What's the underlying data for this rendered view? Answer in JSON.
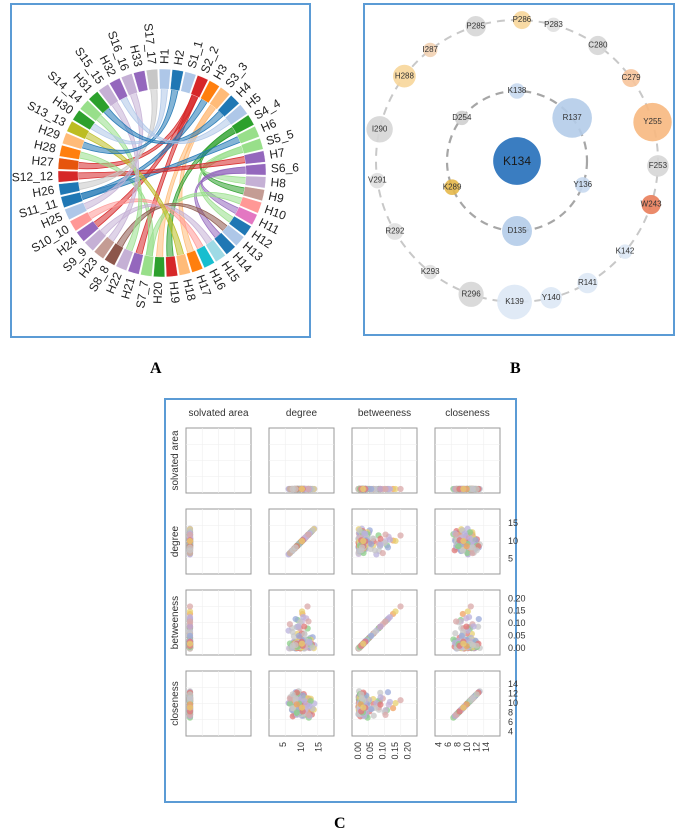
{
  "panel_labels": {
    "a": "A",
    "b": "B",
    "c": "C"
  },
  "chart_data": [
    {
      "type": "chord",
      "title": "",
      "panel": "A",
      "segments": [
        {
          "label": "H1",
          "color": "#aec7e8",
          "kind": "H"
        },
        {
          "label": "H2",
          "color": "#1f77b4",
          "kind": "H"
        },
        {
          "label": "S1_1",
          "color": "#aec7e8",
          "kind": "S"
        },
        {
          "label": "S2_2",
          "color": "#d62728",
          "kind": "S"
        },
        {
          "label": "H3",
          "color": "#ff7f0e",
          "kind": "H"
        },
        {
          "label": "S3_3",
          "color": "#ffbb78",
          "kind": "S"
        },
        {
          "label": "H4",
          "color": "#1f77b4",
          "kind": "H"
        },
        {
          "label": "H5",
          "color": "#aec7e8",
          "kind": "H"
        },
        {
          "label": "S4_4",
          "color": "#2ca02c",
          "kind": "S"
        },
        {
          "label": "H6",
          "color": "#98df8a",
          "kind": "H"
        },
        {
          "label": "S5_5",
          "color": "#98df8a",
          "kind": "S"
        },
        {
          "label": "H7",
          "color": "#9467bd",
          "kind": "H"
        },
        {
          "label": "S6_6",
          "color": "#9467bd",
          "kind": "S"
        },
        {
          "label": "H8",
          "color": "#c5b0d5",
          "kind": "H"
        },
        {
          "label": "H9",
          "color": "#c49c94",
          "kind": "H"
        },
        {
          "label": "H10",
          "color": "#ff9896",
          "kind": "H"
        },
        {
          "label": "H11",
          "color": "#e377c2",
          "kind": "H"
        },
        {
          "label": "H12",
          "color": "#1f77b4",
          "kind": "H"
        },
        {
          "label": "H13",
          "color": "#aec7e8",
          "kind": "H"
        },
        {
          "label": "H14",
          "color": "#1f77b4",
          "kind": "H"
        },
        {
          "label": "H15",
          "color": "#9edae5",
          "kind": "H"
        },
        {
          "label": "H16",
          "color": "#17becf",
          "kind": "H"
        },
        {
          "label": "H17",
          "color": "#ff7f0e",
          "kind": "H"
        },
        {
          "label": "H18",
          "color": "#ffbb78",
          "kind": "H"
        },
        {
          "label": "H19",
          "color": "#d62728",
          "kind": "H"
        },
        {
          "label": "H20",
          "color": "#2ca02c",
          "kind": "H"
        },
        {
          "label": "S7_7",
          "color": "#98df8a",
          "kind": "S"
        },
        {
          "label": "H21",
          "color": "#9467bd",
          "kind": "H"
        },
        {
          "label": "H22",
          "color": "#c5b0d5",
          "kind": "H"
        },
        {
          "label": "S8_8",
          "color": "#8c564b",
          "kind": "S"
        },
        {
          "label": "H23",
          "color": "#c49c94",
          "kind": "H"
        },
        {
          "label": "S9_9",
          "color": "#c5b0d5",
          "kind": "S"
        },
        {
          "label": "H24",
          "color": "#9467bd",
          "kind": "H"
        },
        {
          "label": "S10_10",
          "color": "#ff9896",
          "kind": "S"
        },
        {
          "label": "H25",
          "color": "#aec7e8",
          "kind": "H"
        },
        {
          "label": "S11_11",
          "color": "#1f77b4",
          "kind": "S"
        },
        {
          "label": "H26",
          "color": "#1f77b4",
          "kind": "H"
        },
        {
          "label": "S12_12",
          "color": "#d62728",
          "kind": "S"
        },
        {
          "label": "H27",
          "color": "#e6550d",
          "kind": "H"
        },
        {
          "label": "H28",
          "color": "#ff7f0e",
          "kind": "H"
        },
        {
          "label": "H29",
          "color": "#ffbb78",
          "kind": "H"
        },
        {
          "label": "S13_13",
          "color": "#bcbd22",
          "kind": "S"
        },
        {
          "label": "H30",
          "color": "#2ca02c",
          "kind": "H"
        },
        {
          "label": "S14_14",
          "color": "#98df8a",
          "kind": "S"
        },
        {
          "label": "H31",
          "color": "#2ca02c",
          "kind": "H"
        },
        {
          "label": "S15_15",
          "color": "#c5b0d5",
          "kind": "S"
        },
        {
          "label": "H32",
          "color": "#9467bd",
          "kind": "H"
        },
        {
          "label": "S16_16",
          "color": "#c5b0d5",
          "kind": "S"
        },
        {
          "label": "H33",
          "color": "#9467bd",
          "kind": "H"
        },
        {
          "label": "S17_17",
          "color": "#c7c7c7",
          "kind": "S"
        }
      ],
      "links": [
        [
          "S2_2",
          "H27"
        ],
        [
          "S2_2",
          "H24"
        ],
        [
          "S2_2",
          "H21"
        ],
        [
          "S3_3",
          "H20"
        ],
        [
          "S3_3",
          "H17"
        ],
        [
          "S4_4",
          "H19"
        ],
        [
          "S4_4",
          "H9"
        ],
        [
          "S5_5",
          "H12"
        ],
        [
          "S5_5",
          "H8"
        ],
        [
          "S6_6",
          "H11"
        ],
        [
          "S6_6",
          "H14"
        ],
        [
          "S7_7",
          "H28"
        ],
        [
          "S7_7",
          "H10"
        ],
        [
          "S8_8",
          "H13"
        ],
        [
          "S9_9",
          "H15"
        ],
        [
          "S10_10",
          "H16"
        ],
        [
          "S11_11",
          "H6"
        ],
        [
          "S11_11",
          "H3"
        ],
        [
          "S12_12",
          "H7"
        ],
        [
          "S13_13",
          "H18"
        ],
        [
          "S14_14",
          "H22"
        ],
        [
          "S15_15",
          "H23"
        ],
        [
          "S16_16",
          "H25"
        ],
        [
          "S17_17",
          "H26"
        ],
        [
          "H1",
          "H30"
        ],
        [
          "H2",
          "H29"
        ],
        [
          "H4",
          "H31"
        ],
        [
          "H5",
          "H32"
        ]
      ]
    },
    {
      "type": "network",
      "title": "",
      "panel": "B",
      "center": {
        "label": "K134",
        "color": "#3a7dc1",
        "size": 3.2
      },
      "inner_ring": [
        {
          "label": "K138",
          "angle": -90,
          "color": "#c8d9ef",
          "size": 0.8
        },
        {
          "label": "R137",
          "angle": -38,
          "color": "#b4cce9",
          "size": 2.8
        },
        {
          "label": "Y136",
          "angle": 20,
          "color": "#c8d9ef",
          "size": 0.8
        },
        {
          "label": "D135",
          "angle": 90,
          "color": "#b4cce9",
          "size": 2.0
        },
        {
          "label": "K289",
          "angle": 158,
          "color": "#e6b84a",
          "size": 0.8
        },
        {
          "label": "D254",
          "angle": 218,
          "color": "#cfcfcf",
          "size": 0.7
        }
      ],
      "outer_ring": [
        {
          "label": "P286",
          "angle": -88,
          "color": "#f7d69a",
          "size": 1.0
        },
        {
          "label": "P283",
          "angle": -75,
          "color": "#e0e0e0",
          "size": 0.7
        },
        {
          "label": "C280",
          "angle": -55,
          "color": "#d6d6d6",
          "size": 1.1
        },
        {
          "label": "C279",
          "angle": -36,
          "color": "#f7c49b",
          "size": 1.0
        },
        {
          "label": "Y255",
          "angle": -16,
          "color": "#f7b880",
          "size": 2.7
        },
        {
          "label": "F253",
          "angle": 2,
          "color": "#d6d6d6",
          "size": 1.3
        },
        {
          "label": "W243",
          "angle": 18,
          "color": "#e97d5a",
          "size": 1.1
        },
        {
          "label": "K142",
          "angle": 40,
          "color": "#dde8f5",
          "size": 0.7
        },
        {
          "label": "R141",
          "angle": 60,
          "color": "#dde8f5",
          "size": 1.2
        },
        {
          "label": "Y140",
          "angle": 76,
          "color": "#dde8f5",
          "size": 1.3
        },
        {
          "label": "K139",
          "angle": 91,
          "color": "#dde8f5",
          "size": 2.4
        },
        {
          "label": "R296",
          "angle": 109,
          "color": "#d6d6d6",
          "size": 1.6
        },
        {
          "label": "K293",
          "angle": 128,
          "color": "#e0e0e0",
          "size": 0.7
        },
        {
          "label": "R292",
          "angle": 150,
          "color": "#e0e0e0",
          "size": 0.9
        },
        {
          "label": "V291",
          "angle": 172,
          "color": "#e0e0e0",
          "size": 0.8
        },
        {
          "label": "I290",
          "angle": -167,
          "color": "#d6d6d6",
          "size": 1.7
        },
        {
          "label": "H288",
          "angle": -143,
          "color": "#f7d69a",
          "size": 1.4
        },
        {
          "label": "I287",
          "angle": -128,
          "color": "#f2d2b3",
          "size": 0.7
        },
        {
          "label": "P285",
          "angle": -107,
          "color": "#d6d6d6",
          "size": 1.2
        }
      ]
    },
    {
      "type": "scatter",
      "title": "",
      "panel": "C",
      "variables": [
        "solvated area",
        "degree",
        "betweeness",
        "closeness"
      ],
      "ranges": {
        "solvated area": [
          0,
          1
        ],
        "degree": [
          2,
          18
        ],
        "betweeness": [
          -0.01,
          0.22
        ],
        "closeness": [
          4,
          16
        ]
      },
      "y_ticks": {
        "degree": [
          "5",
          "10",
          "15"
        ],
        "betweeness": [
          "0.00",
          "0.05",
          "0.10",
          "0.15",
          "0.20"
        ],
        "closeness": [
          "4",
          "6",
          "8",
          "10",
          "12",
          "14"
        ]
      },
      "x_ticks": {
        "degree": [
          "5",
          "10",
          "15"
        ],
        "betweeness": [
          "0.00",
          "0.05",
          "0.10",
          "0.15",
          "0.20"
        ],
        "closeness": [
          "4",
          "6",
          "8",
          "10",
          "12",
          "14"
        ]
      },
      "palette": [
        "#c7c7c7",
        "#c7c7c7",
        "#c7c7c7",
        "#b9b1dc",
        "#b9b1dc",
        "#d9a8a8",
        "#e07777",
        "#8ccf8a",
        "#f0a060",
        "#e8d070",
        "#c5b0d5",
        "#9aa9d9"
      ],
      "n_points": 170
    }
  ]
}
